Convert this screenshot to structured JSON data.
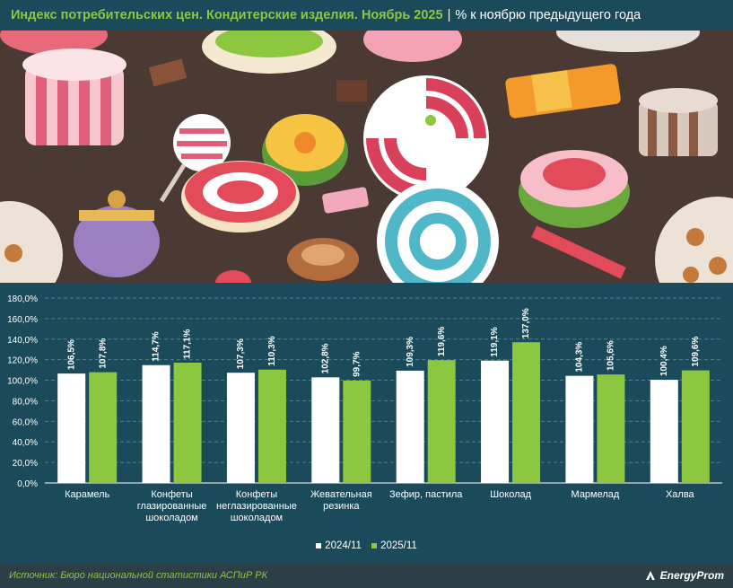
{
  "header": {
    "title": "Индекс потребительских цен. Кондитерские изделия. Ноябрь 2025",
    "separator": "|",
    "subtitle": "% к ноябрю предыдущего года"
  },
  "footer": {
    "source": "Источник: Бюро национальной статистики АСПиР РК",
    "brand": "EnergyProm"
  },
  "colors": {
    "series_2024": "#ffffff",
    "series_2025": "#8dc63f",
    "background": "#1b4a5a"
  },
  "chart_data": {
    "type": "bar",
    "categories": [
      [
        "Карамель"
      ],
      [
        "Конфеты",
        "глазированные",
        "шоколадом"
      ],
      [
        "Конфеты",
        "неглазированные",
        "шоколадом"
      ],
      [
        "Жевательная",
        "резинка"
      ],
      [
        "Зефир, пастила"
      ],
      [
        "Шоколад"
      ],
      [
        "Мармелад"
      ],
      [
        "Халва"
      ]
    ],
    "series": [
      {
        "name": "2024/11",
        "values": [
          106.5,
          114.7,
          107.3,
          102.8,
          109.3,
          119.1,
          104.3,
          100.4
        ],
        "labels": [
          "106,5%",
          "114,7%",
          "107,3%",
          "102,8%",
          "109,3%",
          "119,1%",
          "104,3%",
          "100,4%"
        ]
      },
      {
        "name": "2025/11",
        "values": [
          107.8,
          117.1,
          110.3,
          99.7,
          119.6,
          137.0,
          105.6,
          109.6
        ],
        "labels": [
          "107,8%",
          "117,1%",
          "110,3%",
          "99,7%",
          "119,6%",
          "137,0%",
          "105,6%",
          "109,6%"
        ]
      }
    ],
    "ylim": [
      0,
      180
    ],
    "yticks": [
      0,
      20,
      40,
      60,
      80,
      100,
      120,
      140,
      160,
      180
    ],
    "ytick_labels": [
      "0,0%",
      "20,0%",
      "40,0%",
      "60,0%",
      "80,0%",
      "100,0%",
      "120,0%",
      "140,0%",
      "160,0%",
      "180,0%"
    ],
    "grid": true,
    "legend_position": "bottom"
  }
}
